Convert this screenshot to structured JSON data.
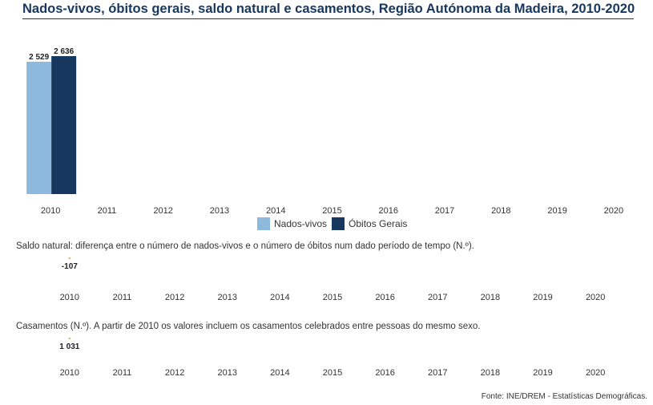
{
  "title": "Nados-vivos, óbitos gerais, saldo natural e casamentos, Região Autónoma da Madeira, 2010-2020",
  "legend": {
    "births": "Nados-vivos",
    "deaths": "Óbitos Gerais"
  },
  "notes": {
    "natural_balance": "Saldo natural: diferença entre o número de nados-vivos e o número de óbitos num dado período de tempo (N.º).",
    "marriages": "Casamentos (N.º). A partir de 2010 os valores incluem os casamentos celebrados entre pessoas do mesmo sexo."
  },
  "source": "Fonte: INE/DREM - Estatísticas Demográficas.",
  "colors": {
    "births": "#8db9dc",
    "deaths": "#17375e",
    "marker": "#e3b54a"
  },
  "chart_data": [
    {
      "type": "bar",
      "categories": [
        "2010",
        "2011",
        "2012",
        "2013",
        "2014",
        "2015",
        "2016",
        "2017",
        "2018",
        "2019",
        "2020"
      ],
      "series": [
        {
          "name": "Nados-vivos",
          "values": [
            2529,
            null,
            null,
            null,
            null,
            null,
            null,
            null,
            null,
            null,
            null
          ],
          "labels": [
            "2 529"
          ]
        },
        {
          "name": "Óbitos Gerais",
          "values": [
            2636,
            null,
            null,
            null,
            null,
            null,
            null,
            null,
            null,
            null,
            null
          ],
          "labels": [
            "2 636"
          ]
        }
      ]
    },
    {
      "type": "line",
      "categories": [
        "2010",
        "2011",
        "2012",
        "2013",
        "2014",
        "2015",
        "2016",
        "2017",
        "2018",
        "2019",
        "2020"
      ],
      "values": [
        -107,
        null,
        null,
        null,
        null,
        null,
        null,
        null,
        null,
        null,
        null
      ],
      "labels": [
        "-107"
      ]
    },
    {
      "type": "line",
      "categories": [
        "2010",
        "2011",
        "2012",
        "2013",
        "2014",
        "2015",
        "2016",
        "2017",
        "2018",
        "2019",
        "2020"
      ],
      "values": [
        1031,
        null,
        null,
        null,
        null,
        null,
        null,
        null,
        null,
        null,
        null
      ],
      "labels": [
        "1 031"
      ]
    }
  ]
}
